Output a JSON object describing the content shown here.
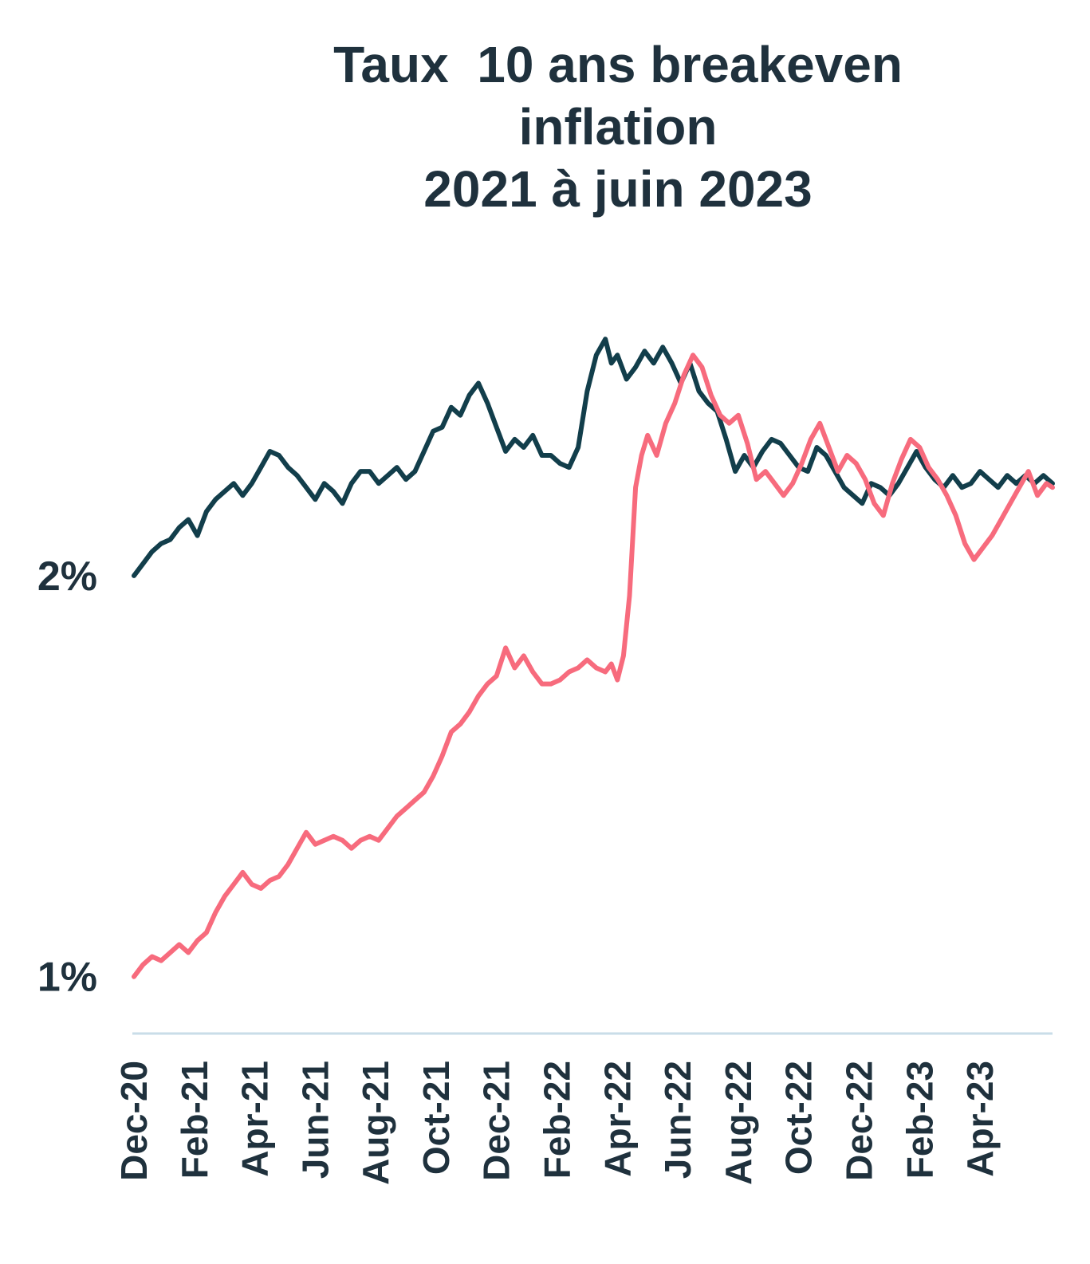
{
  "chart_data": {
    "type": "line",
    "title_lines": [
      "Taux  10 ans breakeven",
      "inflation",
      "2021 à juin 2023"
    ],
    "xlabel": "",
    "ylabel": "",
    "ylim": [
      0.88,
      2.66
    ],
    "y_ticks": [
      {
        "value": 1.0,
        "label": "1%"
      },
      {
        "value": 2.0,
        "label": "2%"
      }
    ],
    "x_ticks": [
      "Dec-20",
      "Feb-21",
      "Apr-21",
      "Jun-21",
      "Aug-21",
      "Oct-21",
      "Dec-21",
      "Feb-22",
      "Apr-22",
      "Jun-22",
      "Aug-22",
      "Oct-22",
      "Dec-22",
      "Feb-23",
      "Apr-23"
    ],
    "x_range_months": [
      0,
      30.4
    ],
    "grid": false,
    "legend": "none",
    "series": [
      {
        "color": "#123e4b",
        "points": [
          [
            0.0,
            2.0
          ],
          [
            0.3,
            2.03
          ],
          [
            0.6,
            2.06
          ],
          [
            0.9,
            2.08
          ],
          [
            1.2,
            2.09
          ],
          [
            1.5,
            2.12
          ],
          [
            1.8,
            2.14
          ],
          [
            2.1,
            2.1
          ],
          [
            2.4,
            2.16
          ],
          [
            2.7,
            2.19
          ],
          [
            3.0,
            2.21
          ],
          [
            3.3,
            2.23
          ],
          [
            3.6,
            2.2
          ],
          [
            3.9,
            2.23
          ],
          [
            4.2,
            2.27
          ],
          [
            4.5,
            2.31
          ],
          [
            4.8,
            2.3
          ],
          [
            5.1,
            2.27
          ],
          [
            5.4,
            2.25
          ],
          [
            5.7,
            2.22
          ],
          [
            6.0,
            2.19
          ],
          [
            6.3,
            2.23
          ],
          [
            6.6,
            2.21
          ],
          [
            6.9,
            2.18
          ],
          [
            7.2,
            2.23
          ],
          [
            7.5,
            2.26
          ],
          [
            7.8,
            2.26
          ],
          [
            8.1,
            2.23
          ],
          [
            8.4,
            2.25
          ],
          [
            8.7,
            2.27
          ],
          [
            9.0,
            2.24
          ],
          [
            9.3,
            2.26
          ],
          [
            9.6,
            2.31
          ],
          [
            9.9,
            2.36
          ],
          [
            10.2,
            2.37
          ],
          [
            10.5,
            2.42
          ],
          [
            10.8,
            2.4
          ],
          [
            11.1,
            2.45
          ],
          [
            11.4,
            2.48
          ],
          [
            11.7,
            2.43
          ],
          [
            12.0,
            2.37
          ],
          [
            12.3,
            2.31
          ],
          [
            12.6,
            2.34
          ],
          [
            12.9,
            2.32
          ],
          [
            13.2,
            2.35
          ],
          [
            13.5,
            2.3
          ],
          [
            13.8,
            2.3
          ],
          [
            14.1,
            2.28
          ],
          [
            14.4,
            2.27
          ],
          [
            14.7,
            2.32
          ],
          [
            15.0,
            2.46
          ],
          [
            15.3,
            2.55
          ],
          [
            15.6,
            2.59
          ],
          [
            15.8,
            2.53
          ],
          [
            16.0,
            2.55
          ],
          [
            16.3,
            2.49
          ],
          [
            16.6,
            2.52
          ],
          [
            16.9,
            2.56
          ],
          [
            17.2,
            2.53
          ],
          [
            17.5,
            2.57
          ],
          [
            17.8,
            2.53
          ],
          [
            18.1,
            2.48
          ],
          [
            18.4,
            2.53
          ],
          [
            18.7,
            2.46
          ],
          [
            19.0,
            2.43
          ],
          [
            19.3,
            2.41
          ],
          [
            19.6,
            2.34
          ],
          [
            19.9,
            2.26
          ],
          [
            20.2,
            2.3
          ],
          [
            20.5,
            2.27
          ],
          [
            20.8,
            2.31
          ],
          [
            21.1,
            2.34
          ],
          [
            21.4,
            2.33
          ],
          [
            21.7,
            2.3
          ],
          [
            22.0,
            2.27
          ],
          [
            22.3,
            2.26
          ],
          [
            22.6,
            2.32
          ],
          [
            22.9,
            2.3
          ],
          [
            23.2,
            2.26
          ],
          [
            23.5,
            2.22
          ],
          [
            23.8,
            2.2
          ],
          [
            24.1,
            2.18
          ],
          [
            24.4,
            2.23
          ],
          [
            24.7,
            2.22
          ],
          [
            25.0,
            2.2
          ],
          [
            25.3,
            2.23
          ],
          [
            25.6,
            2.27
          ],
          [
            25.9,
            2.31
          ],
          [
            26.2,
            2.27
          ],
          [
            26.5,
            2.24
          ],
          [
            26.8,
            2.22
          ],
          [
            27.1,
            2.25
          ],
          [
            27.4,
            2.22
          ],
          [
            27.7,
            2.23
          ],
          [
            28.0,
            2.26
          ],
          [
            28.3,
            2.24
          ],
          [
            28.6,
            2.22
          ],
          [
            28.9,
            2.25
          ],
          [
            29.2,
            2.23
          ],
          [
            29.5,
            2.25
          ],
          [
            29.8,
            2.23
          ],
          [
            30.1,
            2.25
          ],
          [
            30.4,
            2.23
          ]
        ]
      },
      {
        "color": "#f76b7d",
        "points": [
          [
            0.0,
            1.0
          ],
          [
            0.3,
            1.03
          ],
          [
            0.6,
            1.05
          ],
          [
            0.9,
            1.04
          ],
          [
            1.2,
            1.06
          ],
          [
            1.5,
            1.08
          ],
          [
            1.8,
            1.06
          ],
          [
            2.1,
            1.09
          ],
          [
            2.4,
            1.11
          ],
          [
            2.7,
            1.16
          ],
          [
            3.0,
            1.2
          ],
          [
            3.3,
            1.23
          ],
          [
            3.6,
            1.26
          ],
          [
            3.9,
            1.23
          ],
          [
            4.2,
            1.22
          ],
          [
            4.5,
            1.24
          ],
          [
            4.8,
            1.25
          ],
          [
            5.1,
            1.28
          ],
          [
            5.4,
            1.32
          ],
          [
            5.7,
            1.36
          ],
          [
            6.0,
            1.33
          ],
          [
            6.3,
            1.34
          ],
          [
            6.6,
            1.35
          ],
          [
            6.9,
            1.34
          ],
          [
            7.2,
            1.32
          ],
          [
            7.5,
            1.34
          ],
          [
            7.8,
            1.35
          ],
          [
            8.1,
            1.34
          ],
          [
            8.4,
            1.37
          ],
          [
            8.7,
            1.4
          ],
          [
            9.0,
            1.42
          ],
          [
            9.3,
            1.44
          ],
          [
            9.6,
            1.46
          ],
          [
            9.9,
            1.5
          ],
          [
            10.2,
            1.55
          ],
          [
            10.5,
            1.61
          ],
          [
            10.8,
            1.63
          ],
          [
            11.1,
            1.66
          ],
          [
            11.4,
            1.7
          ],
          [
            11.7,
            1.73
          ],
          [
            12.0,
            1.75
          ],
          [
            12.3,
            1.82
          ],
          [
            12.6,
            1.77
          ],
          [
            12.9,
            1.8
          ],
          [
            13.2,
            1.76
          ],
          [
            13.5,
            1.73
          ],
          [
            13.8,
            1.73
          ],
          [
            14.1,
            1.74
          ],
          [
            14.4,
            1.76
          ],
          [
            14.7,
            1.77
          ],
          [
            15.0,
            1.79
          ],
          [
            15.3,
            1.77
          ],
          [
            15.6,
            1.76
          ],
          [
            15.8,
            1.78
          ],
          [
            16.0,
            1.74
          ],
          [
            16.2,
            1.8
          ],
          [
            16.4,
            1.95
          ],
          [
            16.6,
            2.22
          ],
          [
            16.8,
            2.3
          ],
          [
            17.0,
            2.35
          ],
          [
            17.3,
            2.3
          ],
          [
            17.6,
            2.38
          ],
          [
            17.9,
            2.43
          ],
          [
            18.2,
            2.5
          ],
          [
            18.5,
            2.55
          ],
          [
            18.8,
            2.52
          ],
          [
            19.1,
            2.45
          ],
          [
            19.4,
            2.4
          ],
          [
            19.7,
            2.38
          ],
          [
            20.0,
            2.4
          ],
          [
            20.3,
            2.33
          ],
          [
            20.6,
            2.24
          ],
          [
            20.9,
            2.26
          ],
          [
            21.2,
            2.23
          ],
          [
            21.5,
            2.2
          ],
          [
            21.8,
            2.23
          ],
          [
            22.1,
            2.28
          ],
          [
            22.4,
            2.34
          ],
          [
            22.7,
            2.38
          ],
          [
            23.0,
            2.32
          ],
          [
            23.3,
            2.26
          ],
          [
            23.6,
            2.3
          ],
          [
            23.9,
            2.28
          ],
          [
            24.2,
            2.24
          ],
          [
            24.5,
            2.18
          ],
          [
            24.8,
            2.15
          ],
          [
            25.1,
            2.23
          ],
          [
            25.4,
            2.29
          ],
          [
            25.7,
            2.34
          ],
          [
            26.0,
            2.32
          ],
          [
            26.3,
            2.27
          ],
          [
            26.6,
            2.24
          ],
          [
            26.9,
            2.2
          ],
          [
            27.2,
            2.15
          ],
          [
            27.5,
            2.08
          ],
          [
            27.8,
            2.04
          ],
          [
            28.1,
            2.07
          ],
          [
            28.4,
            2.1
          ],
          [
            28.7,
            2.14
          ],
          [
            29.0,
            2.18
          ],
          [
            29.3,
            2.22
          ],
          [
            29.6,
            2.26
          ],
          [
            29.9,
            2.2
          ],
          [
            30.2,
            2.23
          ],
          [
            30.4,
            2.22
          ]
        ]
      }
    ]
  }
}
